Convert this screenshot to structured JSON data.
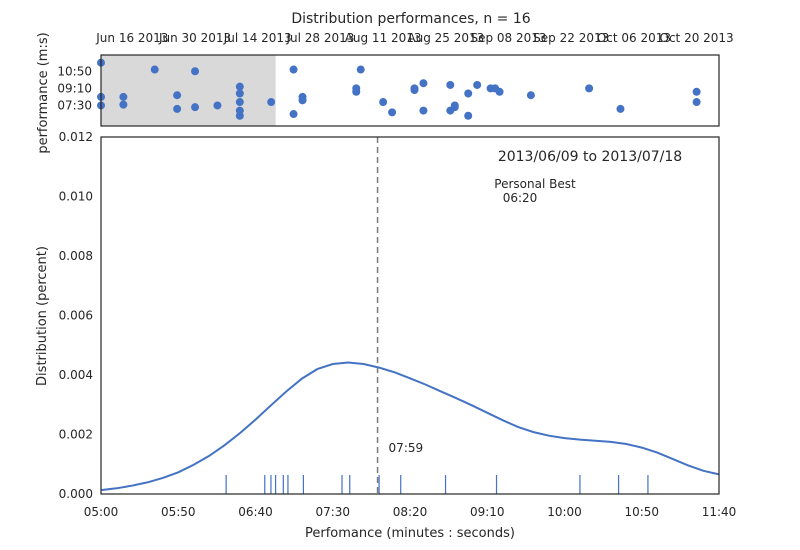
{
  "chart_data": [
    {
      "type": "scatter",
      "title": "Distribution performances, n = 16",
      "xlabel": "",
      "ylabel": "performance (m:s)",
      "x_tick_labels": [
        "Jun 16 2013",
        "Jun 30 2013",
        "Jul 14 2013",
        "Jul 28 2013",
        "Aug 11 2013",
        "Aug 25 2013",
        "Sep 08 2013",
        "Sep 22 2013",
        "Oct 06 2013",
        "Oct 20 2013"
      ],
      "x_tick_dates": [
        "2013-06-16",
        "2013-06-30",
        "2013-07-14",
        "2013-07-28",
        "2013-08-11",
        "2013-08-25",
        "2013-09-08",
        "2013-09-22",
        "2013-10-06",
        "2013-10-20"
      ],
      "xlim": [
        "2013-06-09",
        "2013-10-25"
      ],
      "y_tick_labels": [
        "10:50",
        "09:10",
        "07:30"
      ],
      "y_tick_seconds": [
        650,
        550,
        450
      ],
      "ylim_seconds": [
        330,
        745
      ],
      "highlight_range": [
        "2013-06-09",
        "2013-07-18"
      ],
      "points": [
        {
          "date": "2013-06-09",
          "sec": 700
        },
        {
          "date": "2013-06-09",
          "sec": 450
        },
        {
          "date": "2013-06-09",
          "sec": 500
        },
        {
          "date": "2013-06-14",
          "sec": 455
        },
        {
          "date": "2013-06-14",
          "sec": 500
        },
        {
          "date": "2013-06-21",
          "sec": 660
        },
        {
          "date": "2013-06-26",
          "sec": 430
        },
        {
          "date": "2013-06-26",
          "sec": 510
        },
        {
          "date": "2013-06-30",
          "sec": 650
        },
        {
          "date": "2013-06-30",
          "sec": 440
        },
        {
          "date": "2013-07-05",
          "sec": 450
        },
        {
          "date": "2013-07-10",
          "sec": 560
        },
        {
          "date": "2013-07-10",
          "sec": 520
        },
        {
          "date": "2013-07-10",
          "sec": 470
        },
        {
          "date": "2013-07-10",
          "sec": 420
        },
        {
          "date": "2013-07-10",
          "sec": 390
        },
        {
          "date": "2013-07-17",
          "sec": 470
        },
        {
          "date": "2013-07-22",
          "sec": 400
        },
        {
          "date": "2013-07-22",
          "sec": 660
        },
        {
          "date": "2013-07-24",
          "sec": 480
        },
        {
          "date": "2013-07-24",
          "sec": 500
        },
        {
          "date": "2013-08-05",
          "sec": 550
        },
        {
          "date": "2013-08-05",
          "sec": 530
        },
        {
          "date": "2013-08-06",
          "sec": 660
        },
        {
          "date": "2013-08-11",
          "sec": 470
        },
        {
          "date": "2013-08-13",
          "sec": 410
        },
        {
          "date": "2013-08-18",
          "sec": 540
        },
        {
          "date": "2013-08-18",
          "sec": 550
        },
        {
          "date": "2013-08-20",
          "sec": 420
        },
        {
          "date": "2013-08-20",
          "sec": 580
        },
        {
          "date": "2013-08-26",
          "sec": 570
        },
        {
          "date": "2013-08-26",
          "sec": 420
        },
        {
          "date": "2013-08-27",
          "sec": 450
        },
        {
          "date": "2013-08-27",
          "sec": 440
        },
        {
          "date": "2013-08-30",
          "sec": 520
        },
        {
          "date": "2013-08-30",
          "sec": 390
        },
        {
          "date": "2013-09-01",
          "sec": 570
        },
        {
          "date": "2013-09-04",
          "sec": 550
        },
        {
          "date": "2013-09-05",
          "sec": 550
        },
        {
          "date": "2013-09-06",
          "sec": 530
        },
        {
          "date": "2013-09-13",
          "sec": 510
        },
        {
          "date": "2013-09-26",
          "sec": 550
        },
        {
          "date": "2013-10-03",
          "sec": 430
        },
        {
          "date": "2013-10-20",
          "sec": 530
        },
        {
          "date": "2013-10-20",
          "sec": 470
        }
      ],
      "color": "#4472c4"
    },
    {
      "type": "line",
      "title": "",
      "xlabel": "Perfomance (minutes : seconds)",
      "ylabel": "Distribution (percent)",
      "x_tick_labels": [
        "05:00",
        "05:50",
        "06:40",
        "07:30",
        "08:20",
        "09:10",
        "10:00",
        "10:50",
        "11:40"
      ],
      "x_tick_seconds": [
        300,
        350,
        400,
        450,
        500,
        550,
        600,
        650,
        700
      ],
      "xlim_seconds": [
        300,
        700
      ],
      "y_tick_labels": [
        "0.000",
        "0.002",
        "0.004",
        "0.006",
        "0.008",
        "0.010",
        "0.012"
      ],
      "ylim": [
        0,
        0.012
      ],
      "curve": {
        "x_seconds": [
          300,
          310,
          320,
          330,
          340,
          350,
          360,
          370,
          380,
          390,
          400,
          410,
          420,
          430,
          440,
          450,
          460,
          470,
          480,
          490,
          500,
          510,
          520,
          530,
          540,
          550,
          560,
          570,
          580,
          590,
          600,
          610,
          620,
          630,
          640,
          650,
          660,
          670,
          680,
          690,
          700
        ],
        "y": [
          0.00013,
          0.00019,
          0.00028,
          0.00039,
          0.00054,
          0.00073,
          0.00098,
          0.00128,
          0.00164,
          0.00205,
          0.0025,
          0.00298,
          0.00345,
          0.00388,
          0.0042,
          0.00437,
          0.00442,
          0.00437,
          0.00425,
          0.00409,
          0.00389,
          0.00368,
          0.00345,
          0.00322,
          0.00298,
          0.00273,
          0.00248,
          0.00225,
          0.00208,
          0.00196,
          0.00188,
          0.00183,
          0.00179,
          0.00175,
          0.00168,
          0.00156,
          0.00139,
          0.00118,
          0.00096,
          0.00078,
          0.00066
        ]
      },
      "rug_seconds": [
        381,
        406,
        410,
        413,
        418,
        421,
        431,
        456,
        461,
        480,
        494,
        523,
        556,
        610,
        635,
        654
      ],
      "vline_seconds": 479,
      "vline_label": "07:59",
      "date_range_label": "2013/06/09 to 2013/07/18",
      "personal_best_label": "Personal Best",
      "personal_best_value": "06:20",
      "color": "#4472c4"
    }
  ]
}
